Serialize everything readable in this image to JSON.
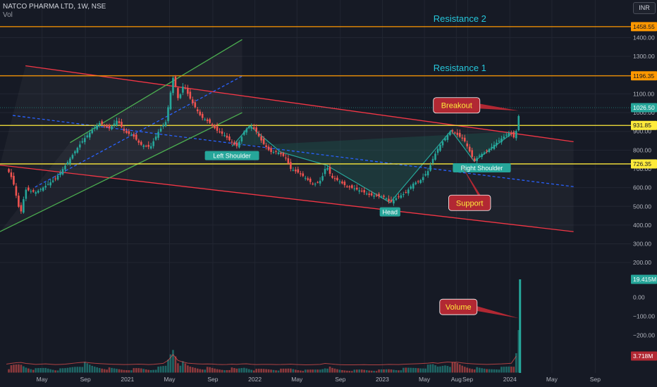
{
  "header": {
    "symbol_line": "NATCO PHARMA LTD, 1W, NSE",
    "volume_label": "Vol"
  },
  "currency_button": "INR",
  "colors": {
    "background": "#161a25",
    "grid": "#222632",
    "axis_text": "#b2b5be",
    "up": "#26a69a",
    "down": "#ef5350",
    "resistance": "#ff9800",
    "yellow": "#ffeb3b",
    "channel_red": "#f23645",
    "channel_green": "#4caf50",
    "midline": "#2962ff",
    "pattern_fill": "#1e5e56",
    "callout": "#b22833",
    "callout_text": "#ffeb3b",
    "annotation_text": "#26c6da",
    "volume_badge": "#26a69a",
    "volume_ma_badge": "#b22833"
  },
  "chart_data": {
    "type": "candlestick",
    "symbol": "NATCO PHARMA LTD",
    "interval": "1W",
    "exchange": "NSE",
    "currency": "INR",
    "price_ticks": [
      1400,
      1300,
      1200,
      1100,
      1000,
      900,
      800,
      700,
      600,
      500,
      400,
      300,
      200
    ],
    "price_ticks_text": [
      "1400.00",
      "1300.00",
      "1200.00",
      "1100.00",
      "1000.00",
      "900.00",
      "800.00",
      "700.00",
      "600.00",
      "500.00",
      "400.00",
      "300.00",
      "200.00"
    ],
    "volume_ticks": [
      0,
      -100,
      -200
    ],
    "volume_ticks_text": [
      "0.00",
      "−100.00",
      "−200.00"
    ],
    "time_ticks": [
      {
        "label": "May",
        "x": 2020.33
      },
      {
        "label": "Sep",
        "x": 2020.67
      },
      {
        "label": "2021",
        "x": 2021.0
      },
      {
        "label": "May",
        "x": 2021.33
      },
      {
        "label": "Sep",
        "x": 2021.67
      },
      {
        "label": "2022",
        "x": 2022.0
      },
      {
        "label": "May",
        "x": 2022.33
      },
      {
        "label": "Sep",
        "x": 2022.67
      },
      {
        "label": "2023",
        "x": 2023.0
      },
      {
        "label": "May",
        "x": 2023.33
      },
      {
        "label": "Aug",
        "x": 2023.58
      },
      {
        "label": "Sep",
        "x": 2023.67
      },
      {
        "label": "2024",
        "x": 2024.0
      },
      {
        "label": "May",
        "x": 2024.33
      },
      {
        "label": "Sep",
        "x": 2024.67
      }
    ],
    "price_path": [
      [
        2020.05,
        710
      ],
      [
        2020.1,
        640
      ],
      [
        2020.16,
        455
      ],
      [
        2020.2,
        590
      ],
      [
        2020.28,
        575
      ],
      [
        2020.36,
        610
      ],
      [
        2020.44,
        650
      ],
      [
        2020.52,
        725
      ],
      [
        2020.6,
        805
      ],
      [
        2020.66,
        860
      ],
      [
        2020.72,
        905
      ],
      [
        2020.78,
        945
      ],
      [
        2020.86,
        915
      ],
      [
        2020.92,
        960
      ],
      [
        2020.98,
        895
      ],
      [
        2021.04,
        880
      ],
      [
        2021.1,
        830
      ],
      [
        2021.18,
        815
      ],
      [
        2021.24,
        895
      ],
      [
        2021.3,
        950
      ],
      [
        2021.36,
        1195
      ],
      [
        2021.4,
        1065
      ],
      [
        2021.44,
        1150
      ],
      [
        2021.48,
        1090
      ],
      [
        2021.52,
        1040
      ],
      [
        2021.58,
        975
      ],
      [
        2021.64,
        950
      ],
      [
        2021.7,
        905
      ],
      [
        2021.76,
        880
      ],
      [
        2021.82,
        840
      ],
      [
        2021.86,
        820
      ],
      [
        2021.92,
        905
      ],
      [
        2021.96,
        930
      ],
      [
        2022.0,
        910
      ],
      [
        2022.06,
        840
      ],
      [
        2022.12,
        790
      ],
      [
        2022.18,
        790
      ],
      [
        2022.24,
        760
      ],
      [
        2022.28,
        700
      ],
      [
        2022.34,
        680
      ],
      [
        2022.4,
        650
      ],
      [
        2022.46,
        615
      ],
      [
        2022.52,
        640
      ],
      [
        2022.56,
        720
      ],
      [
        2022.6,
        655
      ],
      [
        2022.66,
        635
      ],
      [
        2022.72,
        605
      ],
      [
        2022.78,
        595
      ],
      [
        2022.84,
        580
      ],
      [
        2022.9,
        560
      ],
      [
        2022.96,
        555
      ],
      [
        2023.02,
        550
      ],
      [
        2023.06,
        520
      ],
      [
        2023.12,
        550
      ],
      [
        2023.18,
        570
      ],
      [
        2023.24,
        620
      ],
      [
        2023.3,
        640
      ],
      [
        2023.36,
        690
      ],
      [
        2023.4,
        760
      ],
      [
        2023.44,
        815
      ],
      [
        2023.5,
        870
      ],
      [
        2023.54,
        905
      ],
      [
        2023.58,
        885
      ],
      [
        2023.64,
        855
      ],
      [
        2023.68,
        800
      ],
      [
        2023.72,
        740
      ],
      [
        2023.76,
        770
      ],
      [
        2023.82,
        795
      ],
      [
        2023.88,
        830
      ],
      [
        2023.94,
        865
      ],
      [
        2024.0,
        895
      ],
      [
        2024.04,
        860
      ],
      [
        2024.08,
        1026.5
      ]
    ],
    "volume_path": [
      [
        2020.05,
        14
      ],
      [
        2020.1,
        22
      ],
      [
        2020.16,
        28
      ],
      [
        2020.2,
        20
      ],
      [
        2020.28,
        12
      ],
      [
        2020.36,
        16
      ],
      [
        2020.44,
        10
      ],
      [
        2020.52,
        14
      ],
      [
        2020.6,
        24
      ],
      [
        2020.66,
        30
      ],
      [
        2020.72,
        22
      ],
      [
        2020.78,
        18
      ],
      [
        2020.86,
        14
      ],
      [
        2020.92,
        12
      ],
      [
        2020.98,
        10
      ],
      [
        2021.04,
        12
      ],
      [
        2021.1,
        14
      ],
      [
        2021.18,
        10
      ],
      [
        2021.24,
        16
      ],
      [
        2021.3,
        22
      ],
      [
        2021.36,
        92
      ],
      [
        2021.4,
        38
      ],
      [
        2021.44,
        30
      ],
      [
        2021.48,
        20
      ],
      [
        2021.52,
        18
      ],
      [
        2021.58,
        14
      ],
      [
        2021.64,
        16
      ],
      [
        2021.7,
        12
      ],
      [
        2021.76,
        10
      ],
      [
        2021.82,
        14
      ],
      [
        2021.86,
        12
      ],
      [
        2021.92,
        18
      ],
      [
        2021.96,
        14
      ],
      [
        2022.0,
        10
      ],
      [
        2022.06,
        12
      ],
      [
        2022.12,
        12
      ],
      [
        2022.18,
        10
      ],
      [
        2022.24,
        12
      ],
      [
        2022.28,
        14
      ],
      [
        2022.34,
        10
      ],
      [
        2022.4,
        8
      ],
      [
        2022.46,
        10
      ],
      [
        2022.52,
        12
      ],
      [
        2022.56,
        22
      ],
      [
        2022.6,
        14
      ],
      [
        2022.66,
        10
      ],
      [
        2022.72,
        8
      ],
      [
        2022.78,
        8
      ],
      [
        2022.84,
        10
      ],
      [
        2022.9,
        8
      ],
      [
        2022.96,
        8
      ],
      [
        2023.02,
        10
      ],
      [
        2023.06,
        12
      ],
      [
        2023.12,
        10
      ],
      [
        2023.18,
        14
      ],
      [
        2023.24,
        16
      ],
      [
        2023.3,
        18
      ],
      [
        2023.36,
        22
      ],
      [
        2023.4,
        26
      ],
      [
        2023.44,
        20
      ],
      [
        2023.5,
        32
      ],
      [
        2023.54,
        28
      ],
      [
        2023.58,
        30
      ],
      [
        2023.64,
        22
      ],
      [
        2023.68,
        18
      ],
      [
        2023.72,
        16
      ],
      [
        2023.76,
        14
      ],
      [
        2023.82,
        12
      ],
      [
        2023.88,
        14
      ],
      [
        2023.94,
        16
      ],
      [
        2024.0,
        20
      ],
      [
        2024.04,
        22
      ],
      [
        2024.08,
        240
      ]
    ],
    "levels": [
      {
        "name": "Resistance 2",
        "label": "Resistance 2",
        "price": 1458.55,
        "tag": "1458.55",
        "color": "#ff9800"
      },
      {
        "name": "Resistance 1",
        "label": "Resistance 1",
        "price": 1196.35,
        "tag": "1196.35",
        "color": "#ff9800"
      },
      {
        "name": "Neckline",
        "label": "",
        "price": 931.85,
        "tag": "931.85",
        "color": "#ffeb3b"
      },
      {
        "name": "Support",
        "label": "",
        "price": 726.35,
        "tag": "726.35",
        "color": "#ffeb3b"
      }
    ],
    "last_price": {
      "value": 1026.5,
      "tag": "1026.50"
    },
    "last_volume": {
      "tag": "19.415M"
    },
    "volume_ma": {
      "tag": "3.718M"
    },
    "falling_channel": {
      "upper": [
        [
          2020.2,
          1250
        ],
        [
          2024.5,
          845
        ]
      ],
      "lower": [
        [
          2020.0,
          720
        ],
        [
          2024.5,
          365
        ]
      ]
    },
    "rising_channel": {
      "upper": [
        [
          2020.55,
          840
        ],
        [
          2021.9,
          1390
        ]
      ],
      "lower": [
        [
          2020.0,
          365
        ],
        [
          2021.9,
          1000
        ]
      ]
    },
    "pattern": {
      "points": [
        [
          2021.82,
          820
        ],
        [
          2021.96,
          930
        ],
        [
          2022.2,
          790
        ],
        [
          2022.56,
          720
        ],
        [
          2023.06,
          520
        ],
        [
          2023.54,
          905
        ],
        [
          2023.72,
          740
        ],
        [
          2024.04,
          900
        ]
      ],
      "labels": [
        {
          "text": "Left Shoulder",
          "x": 2021.82,
          "y": 765
        },
        {
          "text": "Head",
          "x": 2023.06,
          "y": 465
        },
        {
          "text": "Right Shoulder",
          "x": 2023.78,
          "y": 700
        }
      ]
    },
    "callouts": [
      {
        "text": "Breakout",
        "box": [
          2023.4,
          1080
        ],
        "pointer": [
          2024.07,
          1010
        ]
      },
      {
        "text": "Support",
        "box": [
          2023.52,
          560
        ],
        "pointer": [
          2023.62,
          720
        ]
      },
      {
        "text": "Volume",
        "box": [
          2023.45,
          -10
        ],
        "pointer": [
          2024.07,
          -110
        ]
      }
    ]
  }
}
